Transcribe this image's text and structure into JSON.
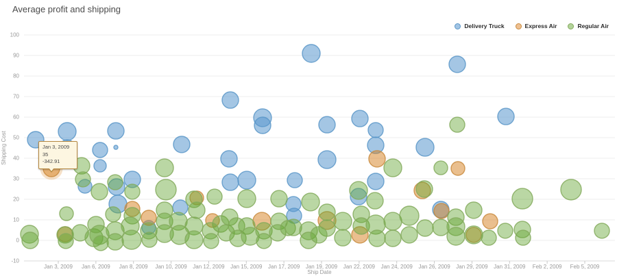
{
  "title": "Average profit and shipping",
  "legend": [
    {
      "label": "Delivery Truck",
      "fill": "#a2c5e4",
      "stroke": "#5b96c8"
    },
    {
      "label": "Express Air",
      "fill": "#eec092",
      "stroke": "#c98b3e"
    },
    {
      "label": "Regular Air",
      "fill": "#b4d49b",
      "stroke": "#84aa5d"
    }
  ],
  "tooltip": {
    "date": "Jan 3, 2009",
    "value": "35",
    "profit": "-342.91"
  },
  "axes": {
    "y": {
      "label": "Shipping Cost",
      "ticks": [
        100,
        90,
        80,
        70,
        60,
        50,
        40,
        30,
        20,
        10,
        0,
        -10
      ]
    },
    "x": {
      "label": "Ship Date",
      "ticks": [
        "Jan 3, 2009",
        "Jan 6, 2009",
        "Jan 8, 2009",
        "Jan 10, 2009",
        "Jan 12, 2009",
        "Jan 15, 2009",
        "Jan 17, 2009",
        "Jan 19, 2009",
        "Jan 22, 2009",
        "Jan 24, 2009",
        "Jan 26, 2009",
        "Jan 29, 2009",
        "Jan 31, 2009",
        "Feb 2, 2009",
        "Feb 5, 2009"
      ]
    }
  },
  "chart_data": {
    "type": "scatter",
    "title": "Average profit and shipping",
    "xlabel": "Ship Date",
    "ylabel": "Shipping Cost",
    "ylim": [
      -10,
      100
    ],
    "grid": "horizontal",
    "legend_position": "top-right",
    "point_format": "[x_px_along_date_axis, shipping_cost, bubble_radius_px]",
    "selected": {
      "series": "Express Air",
      "x": 75,
      "cost": 35,
      "r": 12
    },
    "series": [
      {
        "name": "Delivery Truck",
        "fill": "rgba(90,151,206,0.55)",
        "stroke": "#5b96c8",
        "points": [
          [
            52,
            49.0,
            12
          ],
          [
            98,
            53.0,
            13
          ],
          [
            98,
            45.3,
            11
          ],
          [
            146,
            44.0,
            11
          ],
          [
            146,
            36.3,
            9
          ],
          [
            124,
            26.3,
            10
          ],
          [
            169,
            53.3,
            12
          ],
          [
            169,
            45.3,
            3
          ],
          [
            170,
            26.0,
            12
          ],
          [
            193,
            29.7,
            12
          ],
          [
            172,
            17.7,
            13
          ],
          [
            217,
            6.3,
            10
          ],
          [
            265,
            46.7,
            12
          ],
          [
            263,
            16.0,
            11
          ],
          [
            334,
            39.7,
            12
          ],
          [
            336,
            28.3,
            12
          ],
          [
            360,
            29.3,
            13
          ],
          [
            336,
            68.3,
            12
          ],
          [
            383,
            59.7,
            13
          ],
          [
            383,
            56.0,
            12
          ],
          [
            430,
            29.3,
            11
          ],
          [
            428,
            17.7,
            11
          ],
          [
            429,
            12.0,
            11
          ],
          [
            454,
            91.0,
            13
          ],
          [
            477,
            56.3,
            12
          ],
          [
            477,
            39.3,
            13
          ],
          [
            525,
            59.3,
            12
          ],
          [
            523,
            21.3,
            12
          ],
          [
            548,
            53.7,
            11
          ],
          [
            548,
            46.3,
            12
          ],
          [
            548,
            28.7,
            12
          ],
          [
            620,
            45.3,
            13
          ],
          [
            667,
            85.7,
            12
          ],
          [
            738,
            60.3,
            12
          ],
          [
            643,
            15.0,
            12
          ]
        ]
      },
      {
        "name": "Express Air",
        "fill": "rgba(213,127,29,0.5)",
        "stroke": "#c98b3e",
        "points": [
          [
            75,
            35.0,
            12
          ],
          [
            95,
            3.0,
            11
          ],
          [
            193,
            15.3,
            11
          ],
          [
            217,
            11.0,
            11
          ],
          [
            287,
            20.7,
            10
          ],
          [
            310,
            9.7,
            10
          ],
          [
            382,
            9.3,
            13
          ],
          [
            477,
            9.7,
            13
          ],
          [
            525,
            2.7,
            12
          ],
          [
            550,
            39.7,
            12
          ],
          [
            616,
            24.3,
            12
          ],
          [
            644,
            14.3,
            11
          ],
          [
            668,
            35.0,
            10
          ],
          [
            715,
            9.3,
            11
          ],
          [
            691,
            2.7,
            11
          ]
        ]
      },
      {
        "name": "Regular Air",
        "fill": "rgba(103,167,53,0.45)",
        "stroke": "#84aa5d",
        "points": [
          [
            667,
            56.3,
            11
          ],
          [
            119,
            36.3,
            12
          ],
          [
            121,
            29.7,
            11
          ],
          [
            145,
            23.7,
            12
          ],
          [
            165,
            12.7,
            11
          ],
          [
            193,
            23.7,
            11
          ],
          [
            193,
            12.0,
            12
          ],
          [
            240,
            35.3,
            13
          ],
          [
            242,
            24.7,
            15
          ],
          [
            240,
            14.7,
            12
          ],
          [
            283,
            20.0,
            12
          ],
          [
            287,
            14.7,
            12
          ],
          [
            313,
            21.3,
            11
          ],
          [
            322,
            8.0,
            12
          ],
          [
            335,
            11.3,
            12
          ],
          [
            360,
            20.3,
            13
          ],
          [
            407,
            20.3,
            12
          ],
          [
            407,
            9.3,
            12
          ],
          [
            453,
            18.7,
            13
          ],
          [
            477,
            13.7,
            12
          ],
          [
            477,
            6.0,
            12
          ],
          [
            500,
            9.3,
            13
          ],
          [
            500,
            1.3,
            12
          ],
          [
            527,
            12.7,
            12
          ],
          [
            527,
            7.0,
            12
          ],
          [
            547,
            19.3,
            12
          ],
          [
            548,
            7.7,
            14
          ],
          [
            550,
            1.0,
            12
          ],
          [
            573,
            35.3,
            13
          ],
          [
            573,
            9.3,
            13
          ],
          [
            573,
            1.0,
            12
          ],
          [
            597,
            12.0,
            14
          ],
          [
            597,
            2.7,
            12
          ],
          [
            619,
            25.0,
            12
          ],
          [
            620,
            6.0,
            12
          ],
          [
            643,
            35.3,
            10
          ],
          [
            643,
            6.3,
            12
          ],
          [
            665,
            11.3,
            12
          ],
          [
            665,
            6.7,
            13
          ],
          [
            665,
            2.0,
            13
          ],
          [
            691,
            14.7,
            12
          ],
          [
            691,
            2.7,
            13
          ],
          [
            713,
            1.3,
            11
          ],
          [
            737,
            4.7,
            11
          ],
          [
            762,
            20.3,
            15
          ],
          [
            762,
            5.3,
            12
          ],
          [
            763,
            1.3,
            11
          ],
          [
            833,
            24.7,
            15
          ],
          [
            878,
            4.7,
            11
          ],
          [
            43,
            3.0,
            13
          ],
          [
            44,
            0.0,
            12
          ],
          [
            95,
            2.7,
            12
          ],
          [
            96,
            -0.3,
            11
          ],
          [
            117,
            3.7,
            12
          ],
          [
            137,
            1.3,
            13
          ],
          [
            97,
            13.0,
            10
          ],
          [
            140,
            7.7,
            12
          ],
          [
            145,
            2.7,
            14
          ],
          [
            147,
            -1.3,
            11
          ],
          [
            168,
            4.7,
            13
          ],
          [
            168,
            -0.7,
            12
          ],
          [
            190,
            7.0,
            13
          ],
          [
            192,
            0.3,
            14
          ],
          [
            217,
            4.7,
            12
          ],
          [
            218,
            0.3,
            11
          ],
          [
            240,
            9.3,
            12
          ],
          [
            240,
            3.3,
            13
          ],
          [
            260,
            9.3,
            13
          ],
          [
            262,
            2.7,
            14
          ],
          [
            283,
            7.0,
            13
          ],
          [
            283,
            0.3,
            13
          ],
          [
            307,
            4.7,
            12
          ],
          [
            308,
            -0.3,
            11
          ],
          [
            330,
            3.7,
            12
          ],
          [
            345,
            7.0,
            12
          ],
          [
            347,
            1.0,
            12
          ],
          [
            360,
            7.0,
            12
          ],
          [
            365,
            2.0,
            13
          ],
          [
            385,
            4.7,
            12
          ],
          [
            385,
            -0.3,
            11
          ],
          [
            405,
            3.7,
            12
          ],
          [
            420,
            6.0,
            11
          ],
          [
            428,
            6.3,
            12
          ],
          [
            450,
            4.7,
            13
          ],
          [
            450,
            0.0,
            12
          ],
          [
            465,
            2.7,
            12
          ],
          [
            168,
            28.3,
            11
          ],
          [
            523,
            24.3,
            13
          ]
        ]
      }
    ]
  }
}
